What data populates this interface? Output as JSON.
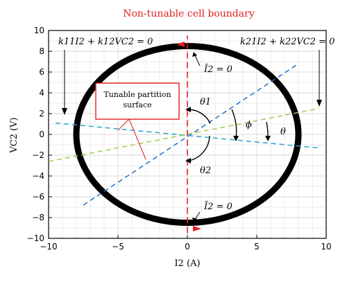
{
  "chart_data": {
    "type": "line",
    "title": "Non-tunable cell boundary",
    "xlabel": "I2 (A)",
    "ylabel": "VC2 (V)",
    "xlim": [
      -10,
      10
    ],
    "ylim": [
      -10,
      10
    ],
    "xticks": [
      "−10",
      "−5",
      "0",
      "5",
      "10"
    ],
    "xtick_values": [
      -10,
      -5,
      0,
      5,
      10
    ],
    "yticks": [
      "−10",
      "−8",
      "−6",
      "−4",
      "−2",
      "0",
      "2",
      "4",
      "6",
      "8",
      "10"
    ],
    "ytick_values": [
      -10,
      -8,
      -6,
      -4,
      -2,
      0,
      2,
      4,
      6,
      8,
      10
    ],
    "grid": true,
    "boundary_ellipse": {
      "cx": 0,
      "cy": 0,
      "rx": 8.0,
      "ry": 8.5
    },
    "series": [
      {
        "color": "#1f6fc4",
        "style": "dashed",
        "x": [
          -7.5,
          8
        ],
        "y": [
          -6.8,
          6.8
        ]
      },
      {
        "color": "#2aa0d4",
        "style": "dashed",
        "x": [
          -9.5,
          9.5
        ],
        "y": [
          1.1,
          -1.3
        ]
      },
      {
        "color": "#9acc55",
        "style": "dashed",
        "x": [
          -10,
          9.5
        ],
        "y": [
          -2.6,
          2.5
        ]
      },
      {
        "color": "#e02020",
        "style": "dashed",
        "x": [
          0,
          0
        ],
        "y": [
          -9.5,
          9.5
        ]
      }
    ],
    "annotations": {
      "left_eq": "k11I2 + k12VC2 = 0",
      "right_eq": "k21I2 + k22VC2 = 0",
      "top_zero": "Ĩ2 = 0",
      "bottom_zero": "Ĩ2 = 0",
      "box_line1": "Tunable partition",
      "box_line2": "surface",
      "theta1": "θ1",
      "theta2": "θ2",
      "phi": "ϕ",
      "theta": "θ"
    }
  },
  "colors": {
    "boundary": "#000000",
    "red": "#e02020",
    "grid": "#d8d8d8"
  }
}
